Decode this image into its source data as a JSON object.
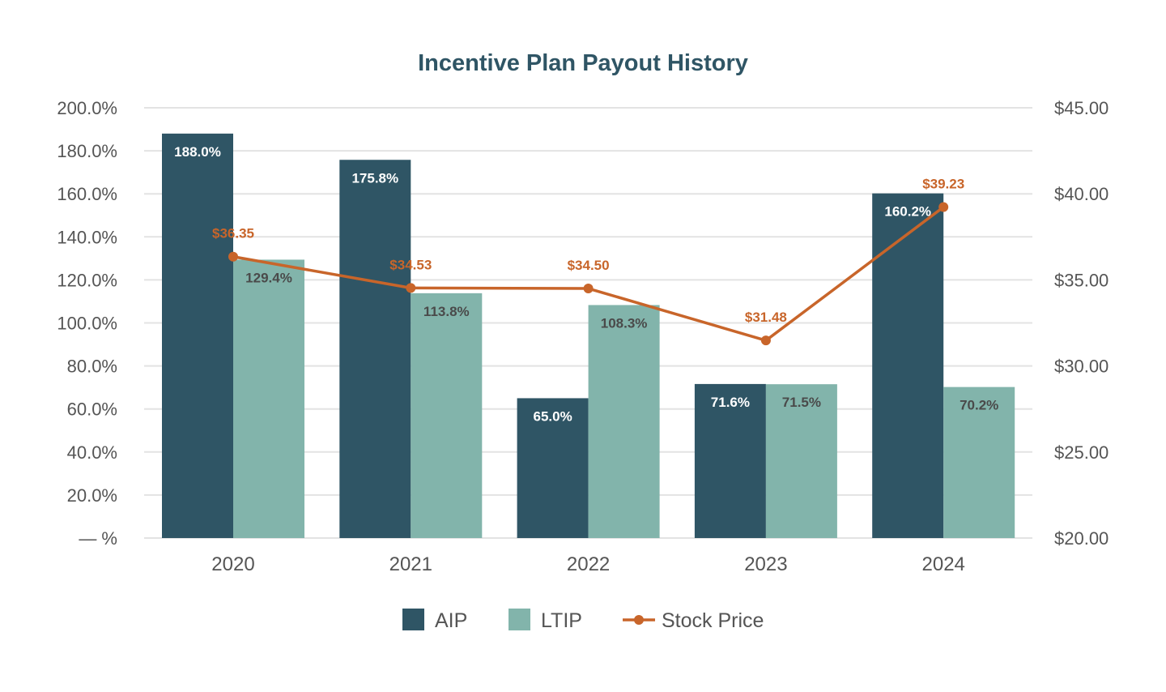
{
  "chart_data": {
    "type": "bar",
    "title": "Incentive Plan Payout History",
    "categories": [
      "2020",
      "2021",
      "2022",
      "2023",
      "2024"
    ],
    "series": [
      {
        "name": "AIP",
        "kind": "bar",
        "axis": "left",
        "color": "#2f5565",
        "label_color": "#ffffff",
        "values": [
          188.0,
          175.8,
          65.0,
          71.6,
          160.2
        ],
        "labels": [
          "188.0%",
          "175.8%",
          "65.0%",
          "71.6%",
          "160.2%"
        ]
      },
      {
        "name": "LTIP",
        "kind": "bar",
        "axis": "left",
        "color": "#82b4ab",
        "label_color": "#4a4a4a",
        "values": [
          129.4,
          113.8,
          108.3,
          71.5,
          70.2
        ],
        "labels": [
          "129.4%",
          "113.8%",
          "108.3%",
          "71.5%",
          "70.2%"
        ]
      },
      {
        "name": "Stock Price",
        "kind": "line",
        "axis": "right",
        "color": "#c8652a",
        "values": [
          36.35,
          34.53,
          34.5,
          31.48,
          39.23
        ],
        "labels": [
          "$36.35",
          "$34.53",
          "$34.50",
          "$31.48",
          "$39.23"
        ]
      }
    ],
    "y_left": {
      "min": 0,
      "max": 200,
      "ticks": [
        0,
        20,
        40,
        60,
        80,
        100,
        120,
        140,
        160,
        180,
        200
      ],
      "tick_labels": [
        "— %",
        "20.0%",
        "40.0%",
        "60.0%",
        "80.0%",
        "100.0%",
        "120.0%",
        "140.0%",
        "160.0%",
        "180.0%",
        "200.0%"
      ]
    },
    "y_right": {
      "min": 20,
      "max": 45,
      "ticks": [
        20,
        25,
        30,
        35,
        40,
        45
      ],
      "tick_labels": [
        "$20.00",
        "$25.00",
        "$30.00",
        "$35.00",
        "$40.00",
        "$45.00"
      ]
    },
    "grid": true,
    "legend": "bottom-center",
    "xlabel": "",
    "ylabel": ""
  }
}
